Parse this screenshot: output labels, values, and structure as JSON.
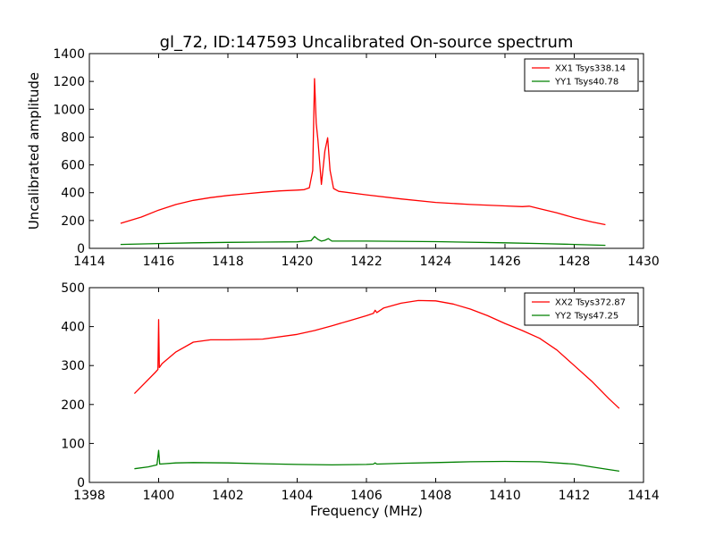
{
  "title": "gl_72, ID:147593 Uncalibrated On-source spectrum",
  "chart_data": [
    {
      "type": "line",
      "title": "gl_72, ID:147593 Uncalibrated On-source spectrum",
      "xlabel": "",
      "ylabel": "Uncalibrated amplitude",
      "xlim": [
        1414,
        1430
      ],
      "ylim": [
        0,
        1400
      ],
      "xticks": [
        1414,
        1416,
        1418,
        1420,
        1422,
        1424,
        1426,
        1428,
        1430
      ],
      "yticks": [
        0,
        200,
        400,
        600,
        800,
        1000,
        1200,
        1400
      ],
      "legend_position": "top-right",
      "series": [
        {
          "name": "XX1 Tsys338.14",
          "color": "#ff0000",
          "x": [
            1414.9,
            1415.5,
            1416.0,
            1416.5,
            1417.0,
            1417.5,
            1418.0,
            1418.5,
            1419.0,
            1419.5,
            1420.0,
            1420.2,
            1420.35,
            1420.45,
            1420.5,
            1420.55,
            1420.6,
            1420.7,
            1420.8,
            1420.88,
            1420.95,
            1421.05,
            1421.2,
            1422.0,
            1423.0,
            1424.0,
            1425.0,
            1426.0,
            1426.5,
            1426.7,
            1427.0,
            1427.5,
            1428.0,
            1428.5,
            1428.9
          ],
          "y": [
            180,
            225,
            275,
            315,
            345,
            365,
            380,
            392,
            403,
            413,
            419,
            422,
            435,
            560,
            1220,
            900,
            780,
            460,
            700,
            795,
            560,
            430,
            410,
            385,
            355,
            330,
            315,
            305,
            300,
            303,
            285,
            255,
            220,
            190,
            170
          ]
        },
        {
          "name": "YY1 Tsys40.78",
          "color": "#008000",
          "x": [
            1414.9,
            1416.0,
            1417.0,
            1418.0,
            1419.0,
            1420.0,
            1420.4,
            1420.5,
            1420.6,
            1420.7,
            1420.8,
            1420.9,
            1421.0,
            1422.0,
            1424.0,
            1426.0,
            1427.0,
            1428.0,
            1428.9
          ],
          "y": [
            28,
            35,
            40,
            43,
            45,
            47,
            55,
            85,
            65,
            52,
            58,
            70,
            52,
            52,
            48,
            40,
            35,
            28,
            22
          ]
        }
      ]
    },
    {
      "type": "line",
      "title": "",
      "xlabel": "Frequency (MHz)",
      "ylabel": "",
      "xlim": [
        1398,
        1414
      ],
      "ylim": [
        0,
        500
      ],
      "xticks": [
        1398,
        1400,
        1402,
        1404,
        1406,
        1408,
        1410,
        1412,
        1414
      ],
      "yticks": [
        0,
        100,
        200,
        300,
        400,
        500
      ],
      "legend_position": "top-right",
      "series": [
        {
          "name": "XX2 Tsys372.87",
          "color": "#ff0000",
          "x": [
            1399.3,
            1399.6,
            1399.9,
            1399.98,
            1400.0,
            1400.02,
            1400.1,
            1400.5,
            1401.0,
            1401.5,
            1402.0,
            1403.0,
            1404.0,
            1404.5,
            1405.0,
            1405.5,
            1406.0,
            1406.2,
            1406.25,
            1406.3,
            1406.5,
            1407.0,
            1407.5,
            1408.0,
            1408.5,
            1409.0,
            1409.5,
            1410.0,
            1410.5,
            1411.0,
            1411.5,
            1412.0,
            1412.5,
            1413.0,
            1413.3
          ],
          "y": [
            228,
            255,
            282,
            290,
            418,
            295,
            305,
            335,
            360,
            366,
            366,
            368,
            380,
            390,
            402,
            415,
            428,
            434,
            442,
            436,
            448,
            460,
            467,
            466,
            458,
            445,
            428,
            408,
            390,
            370,
            340,
            300,
            260,
            215,
            190
          ]
        },
        {
          "name": "YY2 Tsys47.25",
          "color": "#008000",
          "x": [
            1399.3,
            1399.7,
            1399.95,
            1400.0,
            1400.03,
            1400.5,
            1401.0,
            1402.0,
            1403.0,
            1404.0,
            1405.0,
            1406.0,
            1406.2,
            1406.25,
            1406.3,
            1407.0,
            1408.0,
            1409.0,
            1410.0,
            1411.0,
            1412.0,
            1412.5,
            1413.0,
            1413.3
          ],
          "y": [
            35,
            40,
            45,
            82,
            47,
            50,
            51,
            50,
            48,
            46,
            45,
            46,
            47,
            50,
            47,
            49,
            51,
            53,
            54,
            53,
            47,
            40,
            33,
            29
          ]
        }
      ]
    }
  ]
}
